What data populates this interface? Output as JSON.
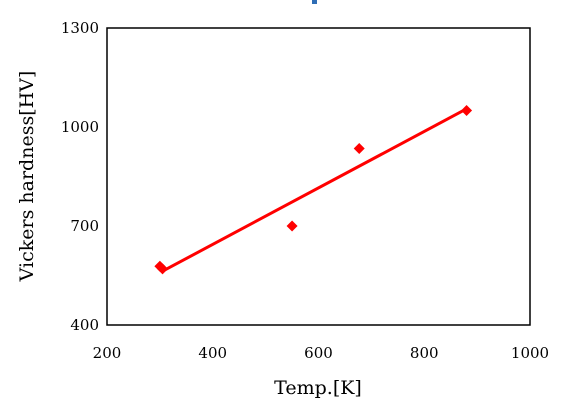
{
  "chart_data": {
    "type": "scatter",
    "xlabel": "Temp.[K]",
    "ylabel": "Vickers hardness[HV]",
    "xlim": [
      200,
      1000
    ],
    "ylim": [
      400,
      1300
    ],
    "x_ticks": [
      200,
      400,
      600,
      800,
      1000
    ],
    "y_ticks": [
      400,
      700,
      1000,
      1300
    ],
    "grid": false,
    "legend": "none",
    "marker_color": "#ff0000",
    "series": [
      {
        "x": [
          300,
          305,
          550,
          677,
          880
        ],
        "y": [
          578,
          570,
          700,
          935,
          1050
        ]
      }
    ],
    "trendline": {
      "type": "linear",
      "color": "#ff0000",
      "x": [
        305,
        880
      ],
      "y": [
        563,
        1055
      ]
    }
  }
}
